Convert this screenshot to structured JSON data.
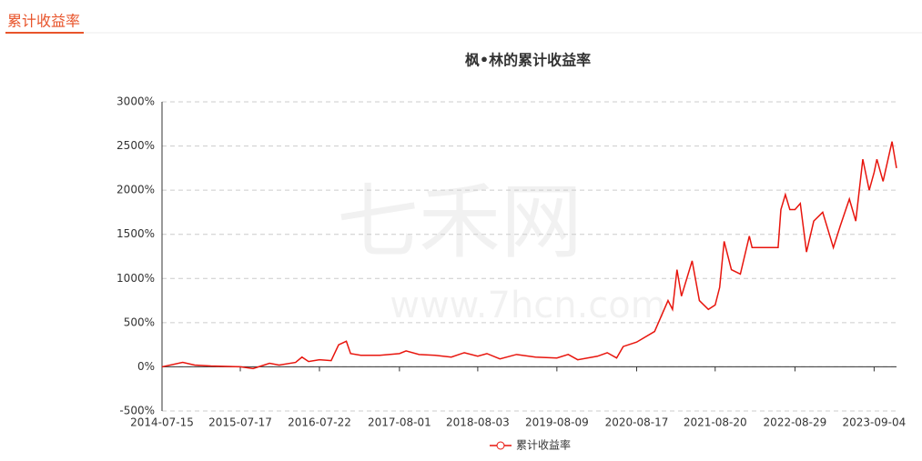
{
  "header": {
    "title": "累计收益率"
  },
  "watermark": [
    "七禾网",
    "www.7hcn.com"
  ],
  "chart_data": {
    "type": "line",
    "title": "枫•林的累计收益率",
    "x": [
      "2014-07-15",
      "2014-10-20",
      "2014-12-15",
      "2015-03-01",
      "2015-07-17",
      "2015-09-15",
      "2015-12-01",
      "2016-01-15",
      "2016-04-01",
      "2016-05-01",
      "2016-06-01",
      "2016-07-22",
      "2016-09-15",
      "2016-10-20",
      "2016-11-25",
      "2016-12-15",
      "2017-02-01",
      "2017-05-01",
      "2017-08-01",
      "2017-09-01",
      "2017-11-01",
      "2018-01-15",
      "2018-04-01",
      "2018-06-01",
      "2018-08-03",
      "2018-09-15",
      "2018-11-15",
      "2019-02-01",
      "2019-05-01",
      "2019-08-09",
      "2019-10-01",
      "2019-11-15",
      "2020-02-15",
      "2020-04-01",
      "2020-05-15",
      "2020-06-15",
      "2020-08-17",
      "2020-11-09",
      "2021-01-11",
      "2021-02-01",
      "2021-02-22",
      "2021-03-15",
      "2021-05-04",
      "2021-06-07",
      "2021-07-19",
      "2021-08-20",
      "2021-09-10",
      "2021-10-01",
      "2021-11-04",
      "2021-12-16",
      "2022-01-27",
      "2022-02-09",
      "2022-06-11",
      "2022-06-24",
      "2022-07-15",
      "2022-08-05",
      "2022-08-29",
      "2022-09-23",
      "2022-10-22",
      "2022-11-25",
      "2023-01-06",
      "2023-02-25",
      "2023-03-30",
      "2023-05-11",
      "2023-06-10",
      "2023-07-13",
      "2023-08-12",
      "2023-09-04",
      "2023-09-17",
      "2023-10-16",
      "2023-11-27",
      "2023-12-18"
    ],
    "series": [
      {
        "name": "累计收益率",
        "color": "#e8150d",
        "values": [
          0,
          50,
          20,
          10,
          0,
          -20,
          40,
          20,
          50,
          110,
          60,
          80,
          70,
          250,
          290,
          150,
          130,
          130,
          150,
          180,
          140,
          130,
          110,
          160,
          120,
          150,
          90,
          140,
          110,
          100,
          140,
          80,
          120,
          160,
          100,
          230,
          280,
          400,
          750,
          650,
          1100,
          800,
          1200,
          750,
          650,
          700,
          900,
          1420,
          1100,
          1050,
          1480,
          1350,
          1350,
          1780,
          1950,
          1780,
          1780,
          1850,
          1300,
          1650,
          1750,
          1350,
          1600,
          1900,
          1650,
          2350,
          2000,
          2200,
          2350,
          2100,
          2550,
          2250
        ]
      }
    ],
    "xlim": [
      "2014-07-15",
      "2023-12-18"
    ],
    "xticks": [
      "2014-07-15",
      "2015-07-17",
      "2016-07-22",
      "2017-08-01",
      "2018-08-03",
      "2019-08-09",
      "2020-08-17",
      "2021-08-20",
      "2022-08-29",
      "2023-09-04"
    ],
    "ylim": [
      -500,
      3000
    ],
    "yticks": [
      {
        "value": -500,
        "label": "-500%"
      },
      {
        "value": 0,
        "label": "0%"
      },
      {
        "value": 500,
        "label": "500%"
      },
      {
        "value": 1000,
        "label": "1000%"
      },
      {
        "value": 1500,
        "label": "1500%"
      },
      {
        "value": 2000,
        "label": "2000%"
      },
      {
        "value": 2500,
        "label": "2500%"
      },
      {
        "value": 3000,
        "label": "3000%"
      }
    ],
    "grid": true,
    "legend": "bottom"
  }
}
